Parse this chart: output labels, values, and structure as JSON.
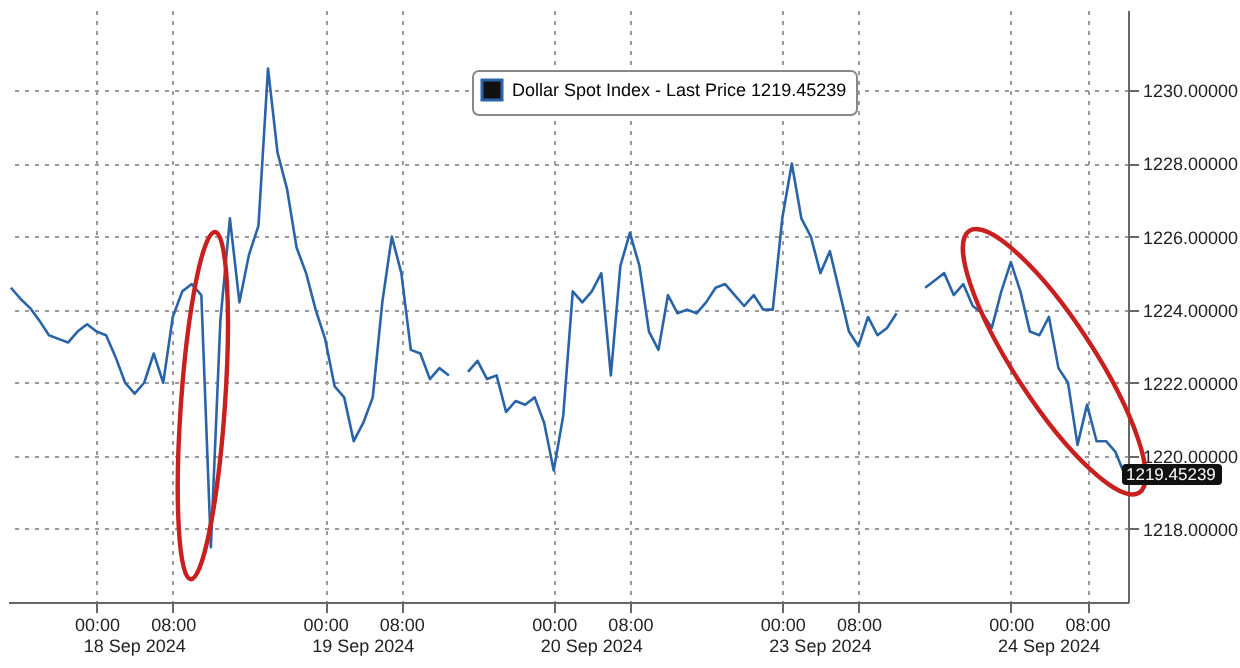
{
  "chart_data": {
    "type": "line",
    "categories": [
      null,
      null,
      null,
      null,
      null,
      null,
      null,
      null,
      null,
      "00:00",
      null,
      null,
      null,
      null,
      null,
      null,
      null,
      "08:00",
      null,
      null,
      null,
      null,
      null,
      null,
      null,
      null,
      null,
      null,
      null,
      null,
      null,
      null,
      null,
      "00:00",
      null,
      null,
      null,
      null,
      null,
      null,
      null,
      "08:00",
      null,
      null,
      null,
      null,
      null,
      null,
      null,
      null,
      null,
      null,
      null,
      null,
      null,
      null,
      null,
      "00:00",
      null,
      null,
      null,
      null,
      null,
      null,
      null,
      "08:00",
      null,
      null,
      null,
      null,
      null,
      null,
      null,
      null,
      null,
      null,
      null,
      null,
      null,
      null,
      null,
      "00:00",
      null,
      null,
      null,
      null,
      null,
      null,
      null,
      "08:00",
      null,
      null,
      null,
      null,
      null,
      null,
      null,
      null,
      null,
      null,
      null,
      null,
      null,
      null,
      null,
      "00:00",
      null,
      null,
      null,
      null,
      null,
      null,
      null,
      "08:00",
      null,
      null,
      null,
      null
    ],
    "series": [
      {
        "name": "Dollar Spot Index - Last Price 1219.45239",
        "color": "#2a64a8",
        "values": [
          1224.6,
          1224.3,
          1224.05,
          1223.7,
          1223.3,
          1223.2,
          1223.1,
          1223.4,
          1223.6,
          1223.4,
          1223.3,
          1222.7,
          1222.0,
          1221.7,
          1222.0,
          1222.8,
          1222.0,
          1223.8,
          1224.5,
          1224.7,
          1224.4,
          1217.5,
          1223.7,
          1226.5,
          1224.2,
          1225.5,
          1226.3,
          1230.6,
          1228.3,
          1227.3,
          1225.7,
          1225.0,
          1224.0,
          1223.2,
          1221.9,
          1221.6,
          1220.4,
          1220.9,
          1221.6,
          1224.2,
          1226.0,
          1225.0,
          1222.9,
          1222.8,
          1222.1,
          1222.4,
          1222.2,
          null,
          1222.3,
          1222.6,
          1222.1,
          1222.2,
          1221.2,
          1221.5,
          1221.4,
          1221.6,
          1220.9,
          1219.6,
          1221.1,
          1224.5,
          1224.2,
          1224.5,
          1225.0,
          1222.2,
          1225.2,
          1226.1,
          1225.2,
          1223.4,
          1222.9,
          1224.4,
          1223.9,
          1224.0,
          1223.9,
          1224.2,
          1224.6,
          1224.7,
          1224.4,
          1224.1,
          1224.4,
          1224.0,
          1224.0,
          1226.5,
          1228.0,
          1226.5,
          1226.0,
          1225.0,
          1225.6,
          1224.5,
          1223.4,
          1223.0,
          1223.8,
          1223.3,
          1223.5,
          1223.9,
          null,
          null,
          1224.6,
          1224.8,
          1225.0,
          1224.4,
          1224.7,
          1224.1,
          1223.9,
          1223.5,
          1224.5,
          1225.3,
          1224.5,
          1223.4,
          1223.3,
          1223.8,
          1222.4,
          1222.0,
          1220.3,
          1221.4,
          1220.4,
          1220.4,
          1220.1,
          1219.45
        ]
      }
    ],
    "ylim": [
      1216,
      1232.2
    ],
    "yticks": [
      {
        "value": 1218,
        "label": "1218.00000"
      },
      {
        "value": 1220,
        "label": "1220.00000"
      },
      {
        "value": 1222,
        "label": "1222.00000"
      },
      {
        "value": 1224,
        "label": "1224.00000"
      },
      {
        "value": 1226,
        "label": "1226.00000"
      },
      {
        "value": 1228,
        "label": "1228.00000"
      },
      {
        "value": 1230,
        "label": "1230.00000"
      }
    ],
    "annotations": [
      "18 Sep 2024",
      "19 Sep 2024",
      "20 Sep 2024",
      "23 Sep 2024",
      "24 Sep 2024",
      "1219.45239"
    ],
    "grid": true,
    "legend": "top",
    "marker": "none",
    "line_style": "solid"
  }
}
